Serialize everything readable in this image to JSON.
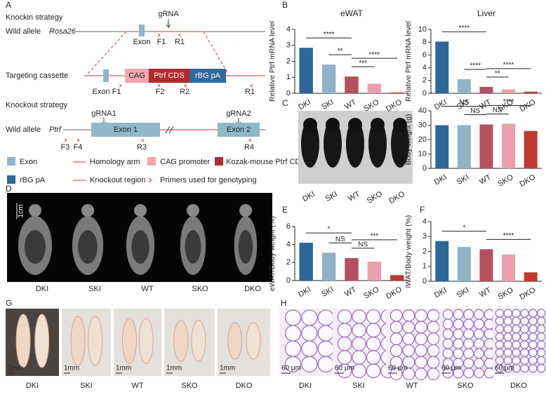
{
  "groups": [
    "DKI",
    "SKI",
    "WT",
    "SKO",
    "DKO"
  ],
  "panel_a": {
    "letter": "A",
    "knockin_title": "Knockin strategy",
    "wild_allele": "Wild allele",
    "rosa26": "Rosa26",
    "grna": "gRNA",
    "exon": "Exon",
    "f1": "F1",
    "r1": "R1",
    "targeting": "Targeting cassette",
    "cag": "CAG",
    "ptrf_cds": "Ptrf CDS",
    "rbg": "rBG pA",
    "exon_f1": "Exon F1",
    "f2": "F2",
    "r2": "R2",
    "knockout_title": "Knockout strategy",
    "grna1": "gRNA1",
    "grna2": "gRNA2",
    "ptrf": "Ptrf",
    "exon1": "Exon 1",
    "exon2": "Exon 2",
    "f3": "F3",
    "f4": "F4",
    "r3": "R3",
    "r4": "R4",
    "legend": [
      "Exon",
      "Homology arm",
      "CAG promoter",
      "Kozak-mouse Ptrf CDS",
      "rBG pA",
      "Knockout region",
      "Primers used for genotyping"
    ]
  },
  "panel_d": {
    "letter": "D",
    "scale": "1cm"
  },
  "panel_g": {
    "letter": "G",
    "scale": "1mm"
  },
  "panel_h": {
    "letter": "H",
    "scale": "60 μm"
  },
  "chart_data": [
    {
      "type": "bar",
      "panel": "B",
      "title": "eWAT",
      "y_label": "Relative Ptrf mRNA level",
      "categories": [
        "DKI",
        "SKI",
        "WT",
        "SKO",
        "DKO"
      ],
      "values": [
        2.85,
        1.8,
        1.05,
        0.6,
        0.05
      ],
      "colors": [
        "#2b6899",
        "#8fb3c9",
        "#b4505f",
        "#e9a0a8",
        "#c0392b"
      ],
      "ylim": [
        0,
        4
      ],
      "yticks": [
        0,
        1,
        2,
        3,
        4
      ],
      "annotations": [
        {
          "text": "**",
          "pair": [
            "SKI",
            "WT"
          ]
        },
        {
          "text": "****",
          "pair": [
            "DKI",
            "WT"
          ]
        },
        {
          "text": "***",
          "pair": [
            "WT",
            "SKO"
          ]
        },
        {
          "text": "****",
          "pair": [
            "WT",
            "DKO"
          ]
        }
      ]
    },
    {
      "type": "bar",
      "title": "Liver",
      "y_label": "Relative Ptrf mRNA level",
      "categories": [
        "DKI",
        "SKI",
        "WT",
        "SKO",
        "DKO"
      ],
      "values": [
        8.1,
        2.2,
        1.0,
        0.6,
        0.25
      ],
      "colors": [
        "#2b6899",
        "#8fb3c9",
        "#b4505f",
        "#e9a0a8",
        "#c0392b"
      ],
      "ylim": [
        0,
        10
      ],
      "yticks": [
        0,
        2,
        4,
        6,
        8,
        10
      ],
      "annotations": [
        {
          "text": "****",
          "pair": [
            "SKI",
            "WT"
          ]
        },
        {
          "text": "****",
          "pair": [
            "DKI",
            "WT"
          ]
        },
        {
          "text": "**",
          "pair": [
            "WT",
            "SKO"
          ]
        },
        {
          "text": "****",
          "pair": [
            "WT",
            "DKO"
          ]
        }
      ]
    },
    {
      "type": "bar",
      "panel": "C",
      "y_label": "Body weight (g)",
      "categories": [
        "DKI",
        "SKI",
        "WT",
        "SKO",
        "DKO"
      ],
      "values": [
        30,
        30,
        30.5,
        31,
        26
      ],
      "colors": [
        "#2b6899",
        "#8fb3c9",
        "#b4505f",
        "#e9a0a8",
        "#c0392b"
      ],
      "ylim": [
        0,
        40
      ],
      "yticks": [
        0,
        10,
        20,
        30,
        40
      ],
      "annotations": [
        {
          "text": "NS",
          "pair": [
            "SKI",
            "WT"
          ]
        },
        {
          "text": "NS",
          "pair": [
            "DKI",
            "WT"
          ]
        },
        {
          "text": "NS",
          "pair": [
            "WT",
            "SKO"
          ]
        },
        {
          "text": "****",
          "pair": [
            "WT",
            "DKO"
          ]
        }
      ]
    },
    {
      "type": "bar",
      "panel": "E",
      "y_label": "eWAT/Body weight (%)",
      "categories": [
        "DKI",
        "SKI",
        "WT",
        "SKO",
        "DKO"
      ],
      "values": [
        4.2,
        3.1,
        2.5,
        2.1,
        0.6
      ],
      "colors": [
        "#2b6899",
        "#8fb3c9",
        "#b4505f",
        "#e9a0a8",
        "#c0392b"
      ],
      "ylim": [
        0,
        6
      ],
      "yticks": [
        0,
        2,
        4,
        6
      ],
      "annotations": [
        {
          "text": "NS",
          "pair": [
            "SKI",
            "WT"
          ]
        },
        {
          "text": "*",
          "pair": [
            "DKI",
            "WT"
          ]
        },
        {
          "text": "NS",
          "pair": [
            "WT",
            "SKO"
          ]
        },
        {
          "text": "***",
          "pair": [
            "WT",
            "DKO"
          ]
        }
      ]
    },
    {
      "type": "bar",
      "panel": "F",
      "y_label": "iWAT/Body weight (%)",
      "categories": [
        "DKI",
        "SKI",
        "WT",
        "SKO",
        "DKO"
      ],
      "values": [
        2.7,
        2.3,
        2.15,
        1.8,
        0.6
      ],
      "colors": [
        "#2b6899",
        "#8fb3c9",
        "#b4505f",
        "#e9a0a8",
        "#c0392b"
      ],
      "ylim": [
        0,
        4
      ],
      "yticks": [
        0,
        1,
        2,
        3,
        4
      ],
      "annotations": [
        {
          "text": "*",
          "pair": [
            "DKI",
            "WT"
          ]
        },
        {
          "text": "****",
          "pair": [
            "WT",
            "DKO"
          ]
        }
      ]
    }
  ]
}
